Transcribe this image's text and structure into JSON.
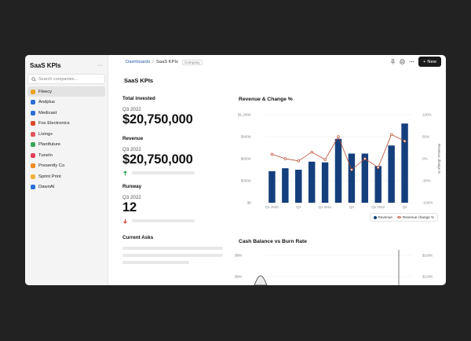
{
  "sidebar": {
    "title": "SaaS KPIs",
    "menu_icon": "more-dots-icon",
    "search_placeholder": "Search companies...",
    "companies": [
      {
        "label": "Fleecy",
        "icon_color": "#e9a321",
        "active": true
      },
      {
        "label": "Andplus",
        "icon_color": "#2d6fd6",
        "active": false
      },
      {
        "label": "Medicast",
        "icon_color": "#2d6fd6",
        "active": false
      },
      {
        "label": "Fox Electronics",
        "icon_color": "#d94a2b",
        "active": false
      },
      {
        "label": "Living+",
        "icon_color": "#e0555a",
        "active": false
      },
      {
        "label": "Plantfuture",
        "icon_color": "#3aa55a",
        "active": false
      },
      {
        "label": "TuneIn",
        "icon_color": "#e0415a",
        "active": false
      },
      {
        "label": "Presently Co",
        "icon_color": "#ef8a22",
        "active": false
      },
      {
        "label": "Sprint Print",
        "icon_color": "#f2b33a",
        "active": false
      },
      {
        "label": "DawnAI",
        "icon_color": "#2d6fd6",
        "active": false
      }
    ]
  },
  "header": {
    "breadcrumb_root": "Dashboards",
    "breadcrumb_sep": "/",
    "breadcrumb_current": "SaaS KPIs",
    "badge": "Company",
    "new_button": "New"
  },
  "page": {
    "title": "SaaS KPIs"
  },
  "kpis": {
    "total_invested": {
      "label": "Total invested",
      "period": "Q3 2022",
      "value": "$20,750,000"
    },
    "revenue": {
      "label": "Revenue",
      "period": "Q3 2022",
      "value": "$20,750,000",
      "trend": "up"
    },
    "runway": {
      "label": "Runway",
      "period": "Q3 2022",
      "value": "12",
      "trend": "down"
    },
    "current_asks": {
      "label": "Current Asks"
    }
  },
  "colors": {
    "bar": "#143f7c",
    "line": "#b94a30",
    "up": "#1f9a4a",
    "down": "#d9342b"
  },
  "chart_data": [
    {
      "type": "bar",
      "title": "Revenue & Change %",
      "y_ticks": [
        "$1,200K",
        "$900K",
        "$600K",
        "$300K",
        "$0"
      ],
      "y2_ticks": [
        "100%",
        "50%",
        "0%",
        "-50%",
        "-100%"
      ],
      "y2label": "Revenue change %",
      "x_tick_labels": [
        "Q1 2020",
        "Q3",
        "Q1 2021",
        "Q3",
        "Q1 2022",
        "Q3"
      ],
      "ylim": [
        0,
        1200
      ],
      "y2lim": [
        -100,
        100
      ],
      "series": [
        {
          "name": "Revenue",
          "values": [
            430,
            470,
            450,
            560,
            550,
            870,
            670,
            670,
            500,
            780,
            1080
          ]
        },
        {
          "name": "Revenue change %",
          "values": [
            10,
            0,
            -5,
            15,
            -2,
            50,
            -25,
            0,
            -20,
            55,
            40
          ]
        }
      ],
      "legend": "bottom-right"
    },
    {
      "type": "area",
      "title": "Cash Balance vs Burn Rate",
      "y_ticks": [
        "$8M",
        "$6M"
      ],
      "y2_ticks": [
        "$160K",
        "$120K"
      ]
    }
  ]
}
